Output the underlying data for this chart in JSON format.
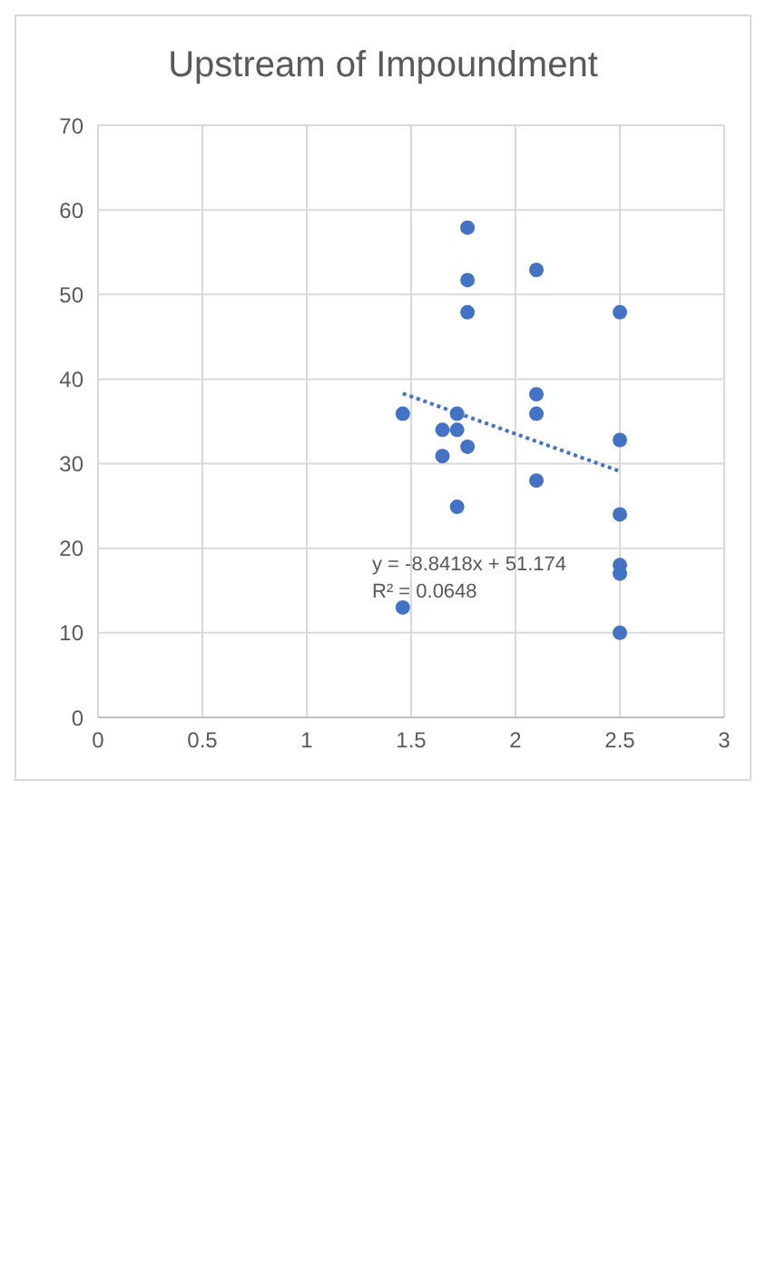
{
  "chart_data": {
    "type": "scatter",
    "title": "Upstream of Impoundment",
    "xlim": [
      0,
      3
    ],
    "xticks": [
      0,
      0.5,
      1,
      1.5,
      2,
      2.5,
      3
    ],
    "ylim": [
      0,
      70
    ],
    "yticks": [
      0,
      10,
      20,
      30,
      40,
      50,
      60,
      70
    ],
    "grid": true,
    "marker": "circle",
    "series": [
      {
        "color": "#4472c4",
        "x": [
          2.5,
          2.5,
          2.5,
          2.5,
          2.5,
          2.5,
          2.1,
          2.1,
          2.1,
          2.1,
          1.77,
          1.77,
          1.77,
          1.77,
          1.72,
          1.72,
          1.72,
          1.65,
          1.65,
          1.46,
          1.46
        ],
        "values": [
          47.9,
          32.8,
          24,
          18,
          17,
          10,
          52.9,
          38.2,
          35.9,
          28,
          57.9,
          51.7,
          47.9,
          32,
          35.9,
          34,
          24.9,
          34,
          30.9,
          35.9,
          13
        ]
      },
      {
        "type": "line",
        "color": "#4472c4",
        "line_style": "dotted",
        "marker": "none",
        "x": [
          1.46,
          2.5
        ],
        "values": [
          38.3,
          29.1
        ]
      }
    ],
    "annotations": [
      "y = -8.8418x + 51.174",
      "R² = 0.0648"
    ]
  }
}
